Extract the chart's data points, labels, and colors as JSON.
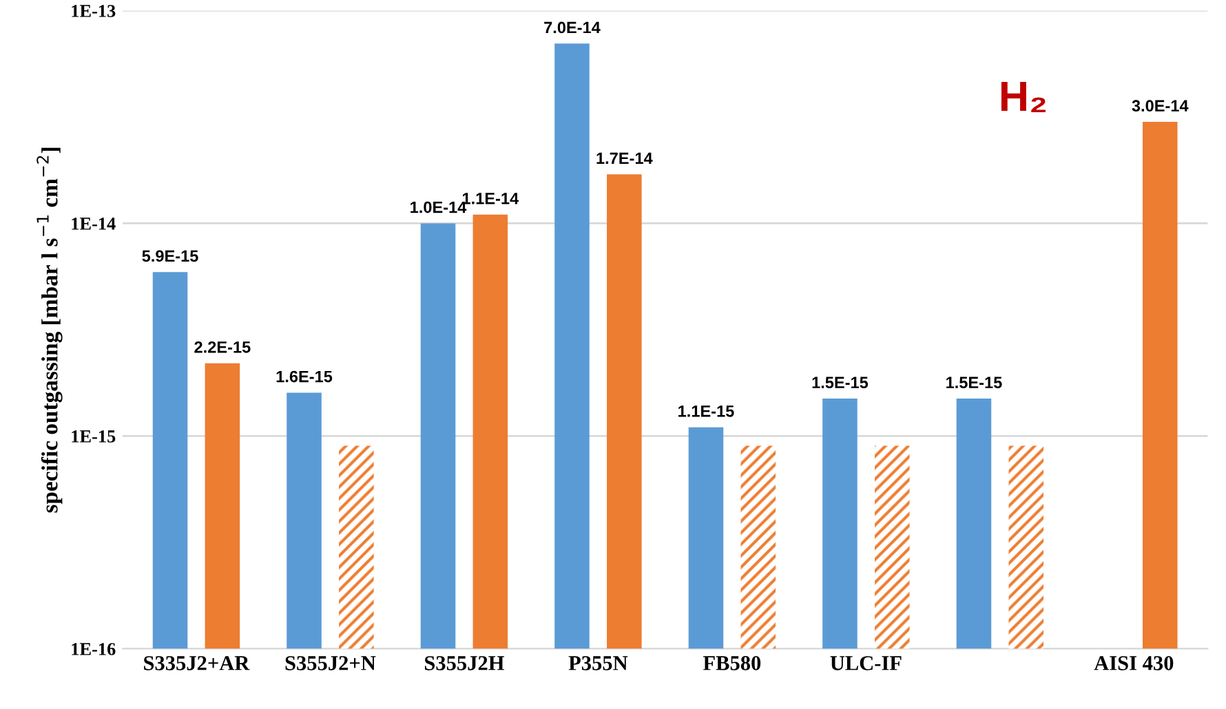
{
  "chart_data": {
    "type": "bar",
    "log": "y",
    "ylabel": "specific outgassing [mbar l s$^{−1}$ cm$^{−2}$]",
    "categories": [
      "S335J2+AR",
      "S355J2+N",
      "S355J2H",
      "P355N",
      "FB580",
      "ULC-IF",
      null,
      "AISI 430"
    ],
    "series": [
      {
        "color": "#5b9bd5",
        "values": [
          5.9e-15,
          1.6e-15,
          1e-14,
          7e-14,
          1.1e-15,
          1.5e-15,
          1.5e-15,
          null
        ],
        "value_labels": [
          "5.9E-15",
          "1.6E-15",
          "1.0E-14",
          "7.0E-14",
          "1.1E-15",
          "1.5E-15",
          "1.5E-15",
          null
        ]
      },
      {
        "color": "#ed7d31",
        "values": [
          2.2e-15,
          9e-16,
          1.1e-14,
          1.7e-14,
          9e-16,
          9e-16,
          9e-16,
          3e-14
        ],
        "value_labels": [
          "2.2E-15",
          null,
          "1.1E-14",
          "1.7E-14",
          null,
          null,
          null,
          "3.0E-14"
        ]
      }
    ],
    "ylim": [
      1e-16,
      1e-13
    ],
    "yticks": [
      {
        "value": 1e-16,
        "label": "1E-16"
      },
      {
        "value": 1e-15,
        "label": "1E-15"
      },
      {
        "value": 1e-14,
        "label": "1E-14"
      },
      {
        "value": 1e-13,
        "label": "1E-13"
      }
    ],
    "grid": "y",
    "legend": false,
    "annotations": [
      "H₂"
    ]
  }
}
